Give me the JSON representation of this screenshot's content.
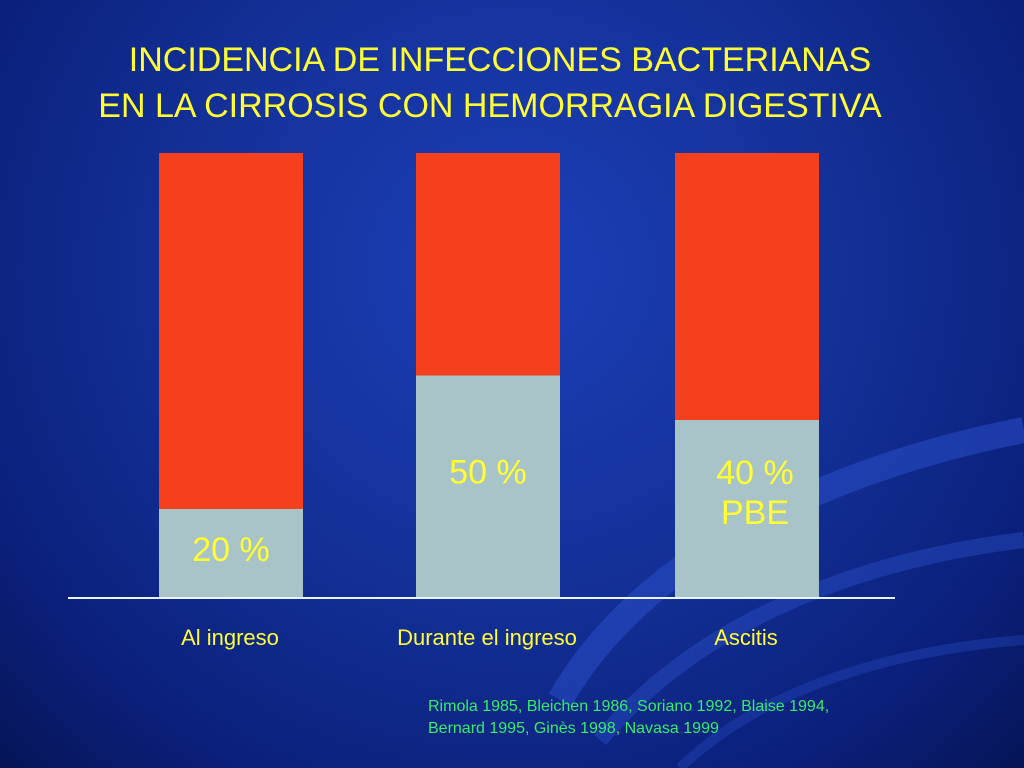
{
  "slide": {
    "title_line1": "INCIDENCIA DE INFECCIONES BACTERIANAS",
    "title_line2": "EN LA CIRROSIS CON HEMORRAGIA DIGESTIVA",
    "references_line1": "Rimola 1985, Bleichen 1986, Soriano 1992, Blaise 1994,",
    "references_line2": "Bernard 1995, Ginès 1998, Navasa 1999"
  },
  "colors": {
    "infected": "#a8c4c8",
    "remainder": "#f5401e",
    "baseline": "#e8f4ff",
    "text": "#ffff33",
    "references": "#33ee66"
  },
  "chart_data": {
    "type": "bar",
    "stacked": true,
    "categories": [
      "Al ingreso",
      "Durante el ingreso",
      "Ascitis"
    ],
    "series": [
      {
        "values": [
          20,
          50,
          40
        ]
      },
      {
        "values": [
          80,
          50,
          60
        ]
      }
    ],
    "data_labels": [
      [
        "20 %"
      ],
      [
        "50 %"
      ],
      [
        "40 %",
        "PBE"
      ]
    ],
    "ylim": [
      0,
      100
    ]
  }
}
